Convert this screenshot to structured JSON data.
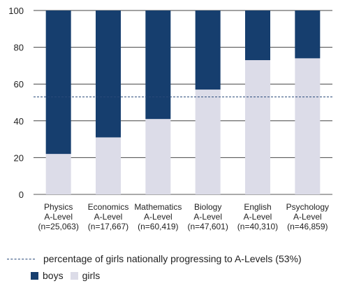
{
  "chart_data": {
    "type": "bar",
    "stacked": true,
    "categories": [
      [
        "Physics",
        "A-Level",
        "(n=25,063)"
      ],
      [
        "Economics",
        "A-Level",
        "(n=17,667)"
      ],
      [
        "Mathematics",
        "A-Level",
        "(n=60,419)"
      ],
      [
        "Biology",
        "A-Level",
        "(n=47,601)"
      ],
      [
        "English",
        "A-Level",
        "(n=40,310)"
      ],
      [
        "Psychology",
        "A-Level",
        "(n=46,859)"
      ]
    ],
    "series": [
      {
        "name": "girls",
        "color": "#dcdce8",
        "values": [
          22,
          31,
          41,
          57,
          73,
          74
        ]
      },
      {
        "name": "boys",
        "color": "#163e6e",
        "values": [
          78,
          69,
          59,
          43,
          27,
          26
        ]
      }
    ],
    "ylim": [
      0,
      100
    ],
    "yticks": [
      "0",
      "20",
      "40",
      "60",
      "80",
      "100"
    ],
    "grid": true,
    "reference_line": {
      "value": 53,
      "label": "percentage of girls nationally progressing to A-Levels (53%)",
      "style": "dashed"
    },
    "legend_position": "bottom"
  }
}
